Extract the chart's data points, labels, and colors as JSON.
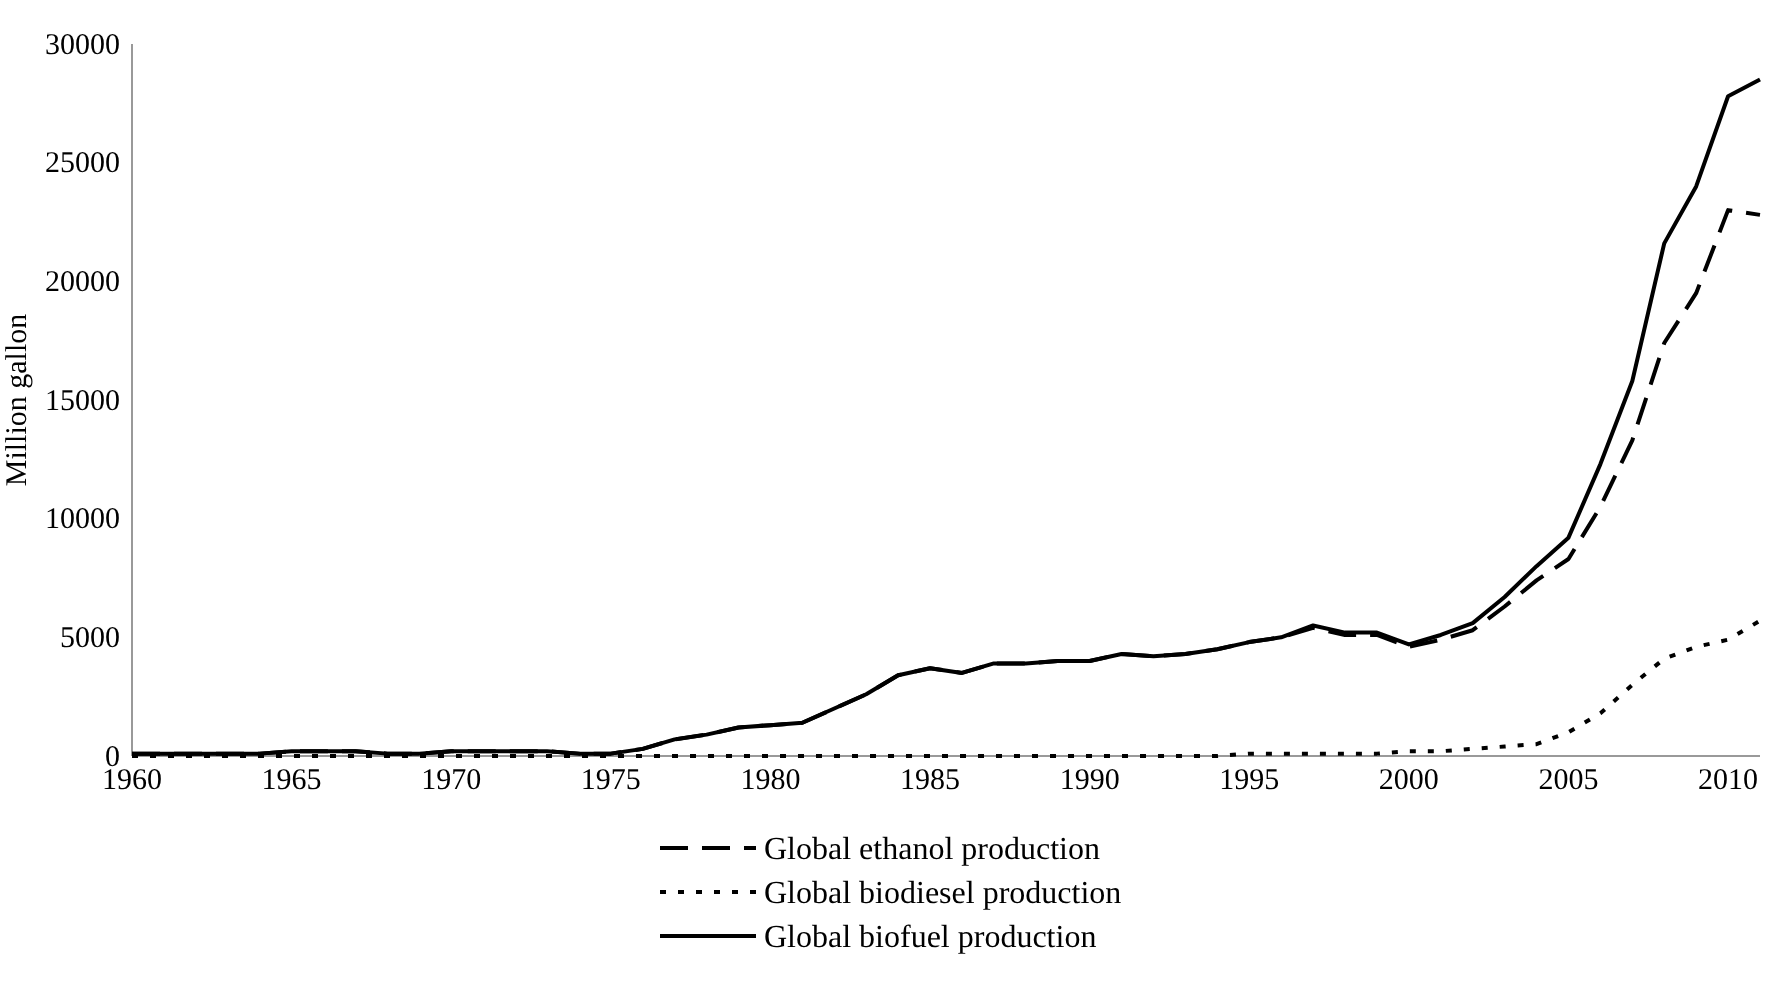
{
  "chart_data": {
    "type": "line",
    "ylabel": "Million gallon",
    "x": [
      1960,
      1961,
      1962,
      1963,
      1964,
      1965,
      1966,
      1967,
      1968,
      1969,
      1970,
      1971,
      1972,
      1973,
      1974,
      1975,
      1976,
      1977,
      1978,
      1979,
      1980,
      1981,
      1982,
      1983,
      1984,
      1985,
      1986,
      1987,
      1988,
      1989,
      1990,
      1991,
      1992,
      1993,
      1994,
      1995,
      1996,
      1997,
      1998,
      1999,
      2000,
      2001,
      2002,
      2003,
      2004,
      2005,
      2006,
      2007,
      2008,
      2009,
      2010,
      2011
    ],
    "series": [
      {
        "name": "Global ethanol production",
        "color": "#000000",
        "line_style": "dashed",
        "values": [
          100,
          100,
          100,
          100,
          100,
          200,
          200,
          200,
          100,
          100,
          200,
          200,
          200,
          200,
          100,
          100,
          300,
          700,
          900,
          1200,
          1300,
          1400,
          2000,
          2600,
          3400,
          3700,
          3500,
          3900,
          3900,
          4000,
          4000,
          4300,
          4200,
          4300,
          4500,
          4800,
          5000,
          5400,
          5100,
          5100,
          4600,
          4900,
          5300,
          6300,
          7400,
          8300,
          10500,
          13300,
          17400,
          19500,
          23000,
          22800
        ]
      },
      {
        "name": "Global biodiesel production",
        "color": "#000000",
        "line_style": "dotted",
        "values": [
          0,
          0,
          0,
          0,
          0,
          0,
          0,
          0,
          0,
          0,
          0,
          0,
          0,
          0,
          0,
          0,
          0,
          0,
          0,
          0,
          0,
          0,
          0,
          0,
          0,
          0,
          0,
          0,
          0,
          0,
          0,
          0,
          0,
          0,
          0,
          100,
          100,
          100,
          100,
          100,
          200,
          200,
          300,
          400,
          500,
          1000,
          1800,
          3000,
          4100,
          4600,
          4900,
          5700
        ]
      },
      {
        "name": "Global biofuel production",
        "color": "#000000",
        "line_style": "solid",
        "values": [
          100,
          100,
          100,
          100,
          100,
          200,
          200,
          200,
          100,
          100,
          200,
          200,
          200,
          200,
          100,
          100,
          300,
          700,
          900,
          1200,
          1300,
          1400,
          2000,
          2600,
          3400,
          3700,
          3500,
          3900,
          3900,
          4000,
          4000,
          4300,
          4200,
          4300,
          4500,
          4800,
          5000,
          5500,
          5200,
          5200,
          4700,
          5100,
          5600,
          6700,
          8000,
          9200,
          12300,
          15800,
          21600,
          24000,
          27800,
          28500
        ]
      }
    ],
    "xlim": [
      1960,
      2011
    ],
    "xticks": [
      1960,
      1965,
      1970,
      1975,
      1980,
      1985,
      1990,
      1995,
      2000,
      2005,
      2010
    ],
    "ylim": [
      0,
      30000
    ],
    "yticks": [
      0,
      5000,
      10000,
      15000,
      20000,
      25000,
      30000
    ],
    "grid": false,
    "legend": "bottom"
  }
}
